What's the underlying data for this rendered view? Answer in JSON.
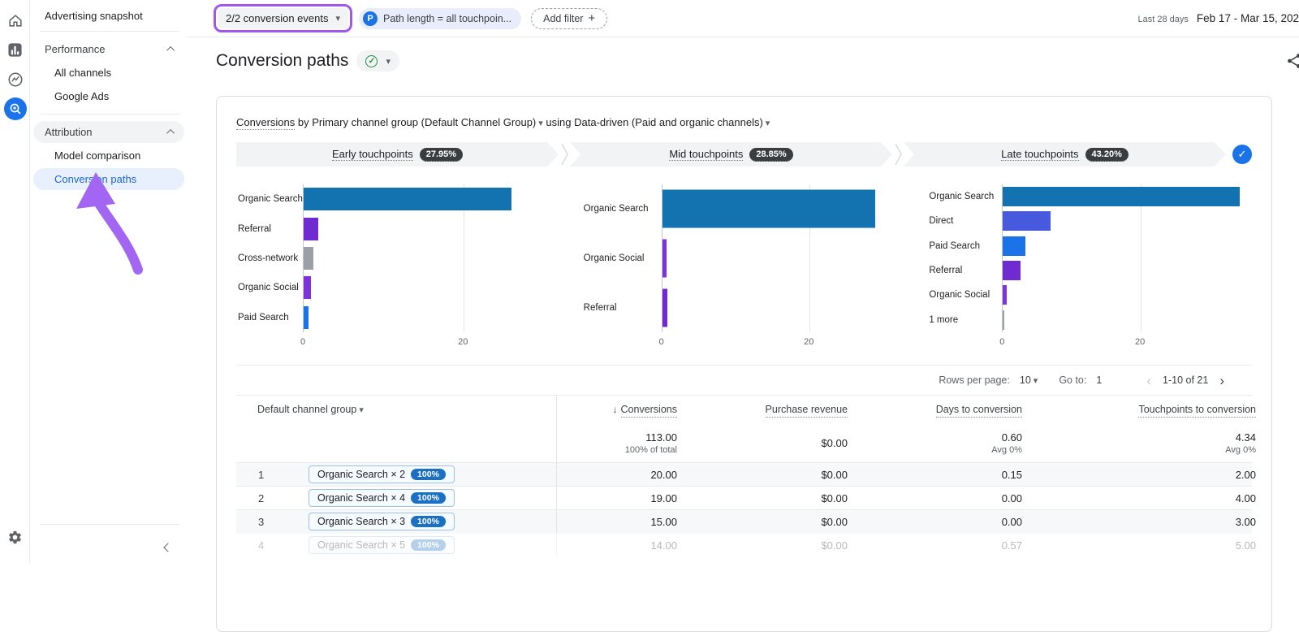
{
  "colors": {
    "accent": "#1a73e8",
    "selected_nav_bg": "#e8f0fe",
    "selected_nav_text": "#1967d2",
    "annotation_purple": "#a156f2",
    "funnel_pill_bg": "#3a3d40"
  },
  "rail": {
    "icons": [
      "home",
      "reports",
      "explore",
      "advertising",
      "settings"
    ]
  },
  "sidebar": {
    "snapshot": "Advertising snapshot",
    "performance": {
      "label": "Performance",
      "items": [
        {
          "label": "All channels"
        },
        {
          "label": "Google Ads"
        }
      ]
    },
    "attribution": {
      "label": "Attribution",
      "items": [
        {
          "label": "Model comparison"
        },
        {
          "label": "Conversion paths"
        }
      ]
    }
  },
  "filters": {
    "conversion_events": "2/2 conversion events",
    "path_badge": "P",
    "path_chip": "Path length = all touchpoin...",
    "add_filter": "Add filter",
    "plus": "+",
    "date_label": "Last 28 days",
    "date_range": "Feb 17 - Mar 15, 202"
  },
  "page": {
    "title": "Conversion paths",
    "check_glyph": "✓"
  },
  "report": {
    "subtitle_metric": "Conversions",
    "subtitle_mid": " by Primary channel group ",
    "subtitle_dim": "(Default Channel Group)",
    "subtitle_using": " using ",
    "subtitle_model": "Data-driven (Paid and organic channels)"
  },
  "funnel": {
    "segments": [
      {
        "label": "Early touchpoints",
        "pct": "27.95%"
      },
      {
        "label": "Mid touchpoints",
        "pct": "28.85%"
      },
      {
        "label": "Late touchpoints",
        "pct": "43.20%"
      }
    ],
    "check_glyph": "✓"
  },
  "chart_data": [
    {
      "type": "bar",
      "orientation": "horizontal",
      "title": "Early touchpoints",
      "categories": [
        "Organic Search",
        "Referral",
        "Cross-network",
        "Organic Social",
        "Paid Search"
      ],
      "values": [
        26,
        1.8,
        1.2,
        0.9,
        0.6
      ],
      "bar_colors": [
        "#1273b0",
        "#6f2bd1",
        "#9aa0a6",
        "#7d32dc",
        "#1a73e8"
      ],
      "ticks": [
        0,
        20
      ],
      "xmax": 32,
      "xlabel": "",
      "ylabel": ""
    },
    {
      "type": "bar",
      "orientation": "horizontal",
      "title": "Mid touchpoints",
      "categories": [
        "Organic Search",
        "Organic Social",
        "Referral"
      ],
      "values": [
        29,
        0.6,
        0.7
      ],
      "bar_colors": [
        "#1273b0",
        "#7d32dc",
        "#6f2bd1"
      ],
      "ticks": [
        0,
        20
      ],
      "xmax": 33,
      "xlabel": "",
      "ylabel": ""
    },
    {
      "type": "bar",
      "orientation": "horizontal",
      "title": "Late touchpoints",
      "categories": [
        "Organic Search",
        "Direct",
        "Paid Search",
        "Referral",
        "Organic Social",
        "1 more"
      ],
      "values": [
        34.5,
        6.9,
        3.3,
        2.5,
        0.6,
        0.15
      ],
      "bar_colors": [
        "#1273b0",
        "#4759dd",
        "#1a73e8",
        "#6f2bd1",
        "#7d32dc",
        "#9aa0a6"
      ],
      "ticks": [
        0,
        20
      ],
      "xmax": 36,
      "xlabel": "",
      "ylabel": ""
    }
  ],
  "pagination": {
    "rows_label": "Rows per page:",
    "rows_value": "10",
    "goto_label": "Go to:",
    "goto_value": "1",
    "range": "1-10 of 21"
  },
  "table": {
    "dim_header": "Default channel group",
    "headers": {
      "conversions": "Conversions",
      "revenue": "Purchase revenue",
      "days": "Days to conversion",
      "touchpoints": "Touchpoints to conversion"
    },
    "totals": {
      "conversions": "113.00",
      "conversions_sub": "100% of total",
      "revenue": "$0.00",
      "days": "0.60",
      "days_sub": "Avg 0%",
      "touchpoints": "4.34",
      "touchpoints_sub": "Avg 0%"
    },
    "rows": [
      {
        "n": "1",
        "path": "Organic Search × 2",
        "pct": "100%",
        "conversions": "20.00",
        "revenue": "$0.00",
        "days": "0.15",
        "touchpoints": "2.00",
        "shaded": true,
        "faded": false
      },
      {
        "n": "2",
        "path": "Organic Search × 4",
        "pct": "100%",
        "conversions": "19.00",
        "revenue": "$0.00",
        "days": "0.00",
        "touchpoints": "4.00",
        "shaded": false,
        "faded": false
      },
      {
        "n": "3",
        "path": "Organic Search × 3",
        "pct": "100%",
        "conversions": "15.00",
        "revenue": "$0.00",
        "days": "0.00",
        "touchpoints": "3.00",
        "shaded": true,
        "faded": false
      },
      {
        "n": "4",
        "path": "Organic Search × 5",
        "pct": "100%",
        "conversions": "14.00",
        "revenue": "$0.00",
        "days": "0.57",
        "touchpoints": "5.00",
        "shaded": false,
        "faded": true
      }
    ]
  }
}
